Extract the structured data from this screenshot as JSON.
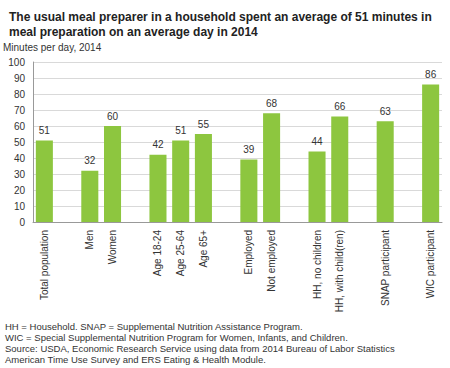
{
  "chart_data": {
    "type": "bar",
    "title": "The usual meal preparer in a household spent an average of 51 minutes in meal preparation on an average day in 2014",
    "y_label": "Minutes per day, 2014",
    "categories": [
      "Total population",
      null,
      "Men",
      "Women",
      null,
      "Age 18-24",
      "Age 25-64",
      "Age 65+",
      null,
      "Employed",
      "Not employed",
      null,
      "HH, no children",
      "HH, with child(ren)",
      null,
      "SNAP participant",
      null,
      "WIC participant"
    ],
    "values": [
      51,
      null,
      32,
      60,
      null,
      42,
      51,
      55,
      null,
      39,
      68,
      null,
      44,
      66,
      null,
      63,
      null,
      86
    ],
    "color": "#8dc63f",
    "ylim": [
      0,
      100
    ],
    "yticks": [
      0,
      10,
      20,
      30,
      40,
      50,
      60,
      70,
      80,
      90,
      100
    ],
    "grid": true,
    "data_labels": true,
    "footnotes": [
      "HH = Household. SNAP = Supplemental Nutrition Assistance Program.",
      "WIC = Special Supplemental Nutrition Program for Women, Infants, and Children.",
      "Source: USDA, Economic Research Service using data from 2014 Bureau of Labor Statistics",
      "American Time Use Survey and ERS Eating & Health Module."
    ]
  }
}
